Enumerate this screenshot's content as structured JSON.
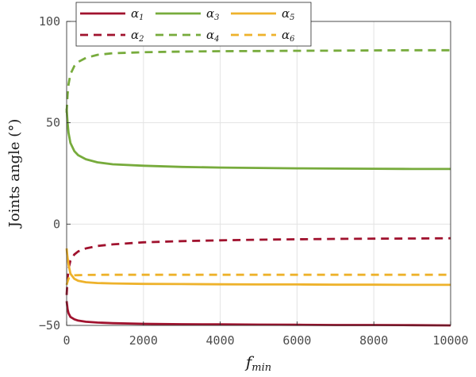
{
  "chart_data": {
    "type": "line",
    "title": "",
    "xlabel": "f",
    "xlabel_sub": "min",
    "ylabel": "Joints angle (°)",
    "xlim": [
      0,
      10000
    ],
    "ylim": [
      -50,
      100
    ],
    "xticks": [
      0,
      2000,
      4000,
      6000,
      8000,
      10000
    ],
    "yticks": [
      -50,
      0,
      50,
      100
    ],
    "xtick_labels": [
      "0",
      "2000",
      "4000",
      "6000",
      "8000",
      "10000"
    ],
    "ytick_labels": [
      "−50",
      "0",
      "50",
      "100"
    ],
    "grid": true,
    "legend_position": "top-left",
    "series": [
      {
        "name": "α",
        "sub": "1",
        "color": "#a0122e",
        "dash": "solid",
        "x": [
          0,
          25,
          50,
          100,
          200,
          300,
          500,
          800,
          1200,
          2000,
          3000,
          4000,
          5000,
          6000,
          7000,
          8000,
          9000,
          10000
        ],
        "y": [
          -38,
          -42,
          -44,
          -45.8,
          -47,
          -47.6,
          -48.2,
          -48.6,
          -48.9,
          -49.2,
          -49.4,
          -49.5,
          -49.6,
          -49.7,
          -49.8,
          -49.8,
          -49.9,
          -50
        ]
      },
      {
        "name": "α",
        "sub": "2",
        "color": "#a0122e",
        "dash": "dashed",
        "x": [
          0,
          25,
          50,
          100,
          200,
          300,
          500,
          800,
          1200,
          2000,
          3000,
          4000,
          5000,
          6000,
          7000,
          8000,
          9000,
          10000
        ],
        "y": [
          -35,
          -27,
          -22,
          -18,
          -15,
          -13.5,
          -12,
          -10.8,
          -10,
          -9,
          -8.4,
          -8,
          -7.7,
          -7.5,
          -7.3,
          -7.2,
          -7.1,
          -7
        ]
      },
      {
        "name": "α",
        "sub": "3",
        "color": "#77ab3c",
        "dash": "solid",
        "x": [
          0,
          25,
          50,
          100,
          200,
          300,
          500,
          800,
          1200,
          2000,
          3000,
          4000,
          5000,
          6000,
          7000,
          8000,
          9000,
          10000
        ],
        "y": [
          57,
          50,
          45,
          40,
          36,
          34,
          32,
          30.5,
          29.5,
          28.8,
          28.2,
          27.9,
          27.7,
          27.5,
          27.4,
          27.3,
          27.2,
          27.2
        ]
      },
      {
        "name": "α",
        "sub": "4",
        "color": "#77ab3c",
        "dash": "dashed",
        "x": [
          0,
          25,
          50,
          100,
          200,
          300,
          500,
          800,
          1200,
          2000,
          3000,
          4000,
          5000,
          6000,
          7000,
          8000,
          9000,
          10000
        ],
        "y": [
          55,
          64,
          69,
          74,
          78,
          80,
          82,
          83.5,
          84.3,
          84.8,
          85.1,
          85.3,
          85.4,
          85.5,
          85.6,
          85.7,
          85.8,
          85.8
        ]
      },
      {
        "name": "α",
        "sub": "5",
        "color": "#eeb22b",
        "dash": "solid",
        "x": [
          0,
          20,
          50,
          100,
          200,
          300,
          500,
          800,
          1200,
          2000,
          3000,
          4000,
          5000,
          6000,
          7000,
          8000,
          9000,
          10000
        ],
        "y": [
          -12,
          -16,
          -20,
          -24.5,
          -27,
          -28,
          -28.7,
          -29.1,
          -29.3,
          -29.5,
          -29.6,
          -29.7,
          -29.8,
          -29.8,
          -29.9,
          -29.9,
          -30,
          -30
        ]
      },
      {
        "name": "α",
        "sub": "6",
        "color": "#eeb22b",
        "dash": "dashed",
        "x": [
          0,
          30,
          60,
          100,
          150,
          200,
          300,
          500,
          1000,
          2000,
          4000,
          6000,
          8000,
          10000
        ],
        "y": [
          -30,
          -28,
          -26.5,
          -25.8,
          -25.5,
          -25.3,
          -25.2,
          -25.1,
          -25,
          -25,
          -25,
          -25,
          -25,
          -25
        ]
      }
    ]
  }
}
